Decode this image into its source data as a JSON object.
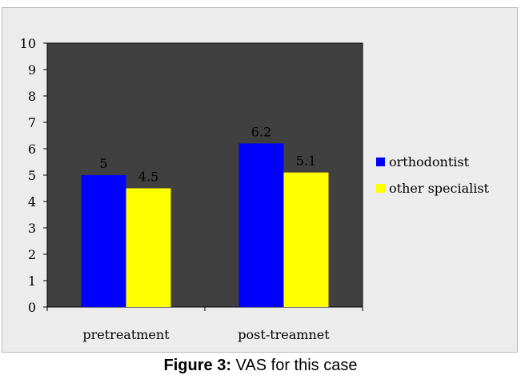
{
  "chart_data": {
    "type": "bar",
    "categories": [
      "pretreatment",
      "post-treamnet"
    ],
    "series": [
      {
        "name": "orthodontist",
        "values": [
          5,
          6.2
        ],
        "color": "#0000ff"
      },
      {
        "name": "other specialist",
        "values": [
          4.5,
          5.1
        ],
        "color": "#ffff00"
      }
    ],
    "data_labels": [
      [
        "5",
        "6.2"
      ],
      [
        "4.5",
        "5.1"
      ]
    ],
    "ylim": [
      0,
      10
    ],
    "yticks": [
      "0",
      "1",
      "2",
      "3",
      "4",
      "5",
      "6",
      "7",
      "8",
      "9",
      "10"
    ],
    "plot_background": "#404040",
    "legend_position": "right",
    "grid": false
  },
  "caption": {
    "label": "Figure 3:",
    "text": " VAS for this case"
  }
}
